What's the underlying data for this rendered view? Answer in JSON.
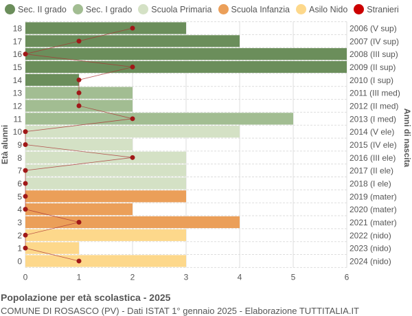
{
  "legend": [
    {
      "label": "Sec. II grado",
      "color": "#6b8e5b"
    },
    {
      "label": "Sec. I grado",
      "color": "#a2bd92"
    },
    {
      "label": "Scuola Primaria",
      "color": "#d4e1c5"
    },
    {
      "label": "Scuola Infanzia",
      "color": "#eb9f59"
    },
    {
      "label": "Asilo Nido",
      "color": "#fdd88b"
    },
    {
      "label": "Stranieri",
      "color": "#cc0000"
    }
  ],
  "title": "Popolazione per età scolastica - 2025",
  "subtitle": "COMUNE DI ROSASCO (PV) - Dati ISTAT 1° gennaio 2025 - Elaborazione TUTTITALIA.IT",
  "chart_data": {
    "type": "bar",
    "orientation": "horizontal",
    "xlabel": "",
    "ylabel": "Età alunni",
    "ylabel_right": "Anni di nascita",
    "xlim": [
      0,
      6
    ],
    "xticks": [
      "0",
      "1",
      "2",
      "3",
      "4",
      "5",
      "6"
    ],
    "grid": true,
    "legend_position": "top",
    "categories": [
      "0",
      "1",
      "2",
      "3",
      "4",
      "5",
      "6",
      "7",
      "8",
      "9",
      "10",
      "11",
      "12",
      "13",
      "14",
      "15",
      "16",
      "17",
      "18"
    ],
    "birth_years": [
      "2024 (nido)",
      "2023 (nido)",
      "2022 (nido)",
      "2021 (mater)",
      "2020 (mater)",
      "2019 (mater)",
      "2018 (I ele)",
      "2017 (II ele)",
      "2016 (III ele)",
      "2015 (IV ele)",
      "2014 (V ele)",
      "2013 (I med)",
      "2012 (II med)",
      "2011 (III med)",
      "2010 (I sup)",
      "2009 (II sup)",
      "2008 (III sup)",
      "2007 (IV sup)",
      "2006 (V sup)"
    ],
    "school_level": [
      "Asilo Nido",
      "Asilo Nido",
      "Asilo Nido",
      "Scuola Infanzia",
      "Scuola Infanzia",
      "Scuola Infanzia",
      "Scuola Primaria",
      "Scuola Primaria",
      "Scuola Primaria",
      "Scuola Primaria",
      "Scuola Primaria",
      "Sec. I grado",
      "Sec. I grado",
      "Sec. I grado",
      "Sec. II grado",
      "Sec. II grado",
      "Sec. II grado",
      "Sec. II grado",
      "Sec. II grado"
    ],
    "series": [
      {
        "name": "Alunni",
        "values": [
          3,
          1,
          3,
          4,
          2,
          3,
          3,
          3,
          3,
          2,
          4,
          5,
          2,
          2,
          1,
          6,
          6,
          4,
          3
        ]
      },
      {
        "name": "Stranieri",
        "values": [
          1,
          0,
          0,
          1,
          0,
          0,
          0,
          0,
          2,
          0,
          0,
          2,
          1,
          1,
          1,
          2,
          0,
          1,
          2
        ]
      }
    ]
  }
}
